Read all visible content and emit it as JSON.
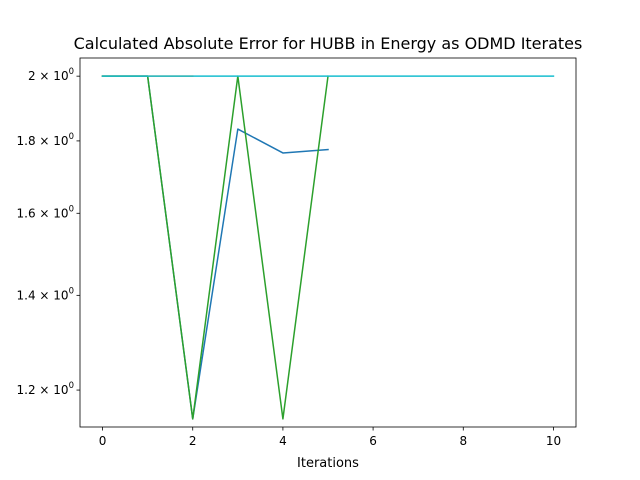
{
  "chart_data": {
    "type": "line",
    "title": "Calculated Absolute Error for HUBB in Energy as ODMD Iterates",
    "xlabel": "Iterations",
    "ylabel": "",
    "yscale": "log",
    "xlim": [
      -0.5,
      10.5
    ],
    "ylim": [
      1.13,
      2.06
    ],
    "xticks": [
      0,
      2,
      4,
      6,
      8,
      10
    ],
    "xtick_labels": [
      "0",
      "2",
      "4",
      "6",
      "8",
      "10"
    ],
    "yticks": [
      {
        "value": 1.2,
        "base": "1.2",
        "exp": "0"
      },
      {
        "value": 1.4,
        "base": "1.4",
        "exp": "0"
      },
      {
        "value": 1.6,
        "base": "1.6",
        "exp": "0"
      },
      {
        "value": 1.8,
        "base": "1.8",
        "exp": "0"
      },
      {
        "value": 2.0,
        "base": "2",
        "exp": "0"
      }
    ],
    "grid": false,
    "legend": "none",
    "series": [
      {
        "color": "#1f77b4",
        "x": [
          0,
          1,
          2,
          3,
          4,
          5
        ],
        "y": [
          2.0,
          2.0,
          1.145,
          1.835,
          1.765,
          1.775
        ]
      },
      {
        "color": "#ff7f0e",
        "x": [
          0,
          1,
          2
        ],
        "y": [
          2.0,
          2.0,
          2.0
        ]
      },
      {
        "color": "#2ca02c",
        "x": [
          0,
          1,
          2,
          3,
          4,
          5
        ],
        "y": [
          2.0,
          2.0,
          1.145,
          2.0,
          1.145,
          2.0
        ]
      },
      {
        "color": "#17becf",
        "x": [
          0,
          1,
          2,
          3,
          4,
          5,
          6,
          7,
          8,
          9,
          10
        ],
        "y": [
          2.0,
          2.0,
          2.0,
          2.0,
          2.0,
          2.0,
          2.0,
          2.0,
          2.0,
          2.0,
          2.0
        ]
      }
    ]
  }
}
